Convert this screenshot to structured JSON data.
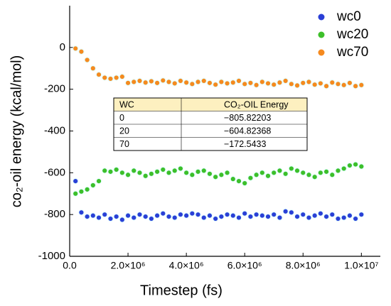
{
  "chart_data": {
    "type": "scatter",
    "xlabel": "Timestep (fs)",
    "ylabel": "co₂-oil energy (kcal/mol)",
    "xlim": [
      0,
      10650000
    ],
    "ylim": [
      -1000,
      200
    ],
    "xticks": [
      {
        "value": 0,
        "label": "0.0"
      },
      {
        "value": 2000000,
        "label": "2.0×10⁶"
      },
      {
        "value": 4000000,
        "label": "4.0×10⁶"
      },
      {
        "value": 6000000,
        "label": "6.0×10⁶"
      },
      {
        "value": 8000000,
        "label": "8.0×10⁶"
      },
      {
        "value": 10000000,
        "label": "1.0×10⁷"
      }
    ],
    "yticks": [
      -1000,
      -800,
      -600,
      -400,
      -200,
      0
    ],
    "legend": "upper right",
    "x": [
      200000,
      400000,
      600000,
      800000,
      1000000,
      1200000,
      1400000,
      1600000,
      1800000,
      2000000,
      2200000,
      2400000,
      2600000,
      2800000,
      3000000,
      3200000,
      3400000,
      3600000,
      3800000,
      4000000,
      4200000,
      4400000,
      4600000,
      4800000,
      5000000,
      5200000,
      5400000,
      5600000,
      5800000,
      6000000,
      6200000,
      6400000,
      6600000,
      6800000,
      7000000,
      7200000,
      7400000,
      7600000,
      7800000,
      8000000,
      8200000,
      8400000,
      8600000,
      8800000,
      9000000,
      9200000,
      9400000,
      9600000,
      9800000,
      10000000
    ],
    "series": [
      {
        "name": "wc0",
        "color": "#2a3fd6",
        "values": [
          -640,
          -790,
          -810,
          -805,
          -815,
          -800,
          -820,
          -810,
          -825,
          -805,
          -815,
          -800,
          -810,
          -820,
          -805,
          -795,
          -810,
          -815,
          -800,
          -805,
          -795,
          -800,
          -815,
          -805,
          -820,
          -810,
          -800,
          -805,
          -815,
          -795,
          -810,
          -800,
          -805,
          -810,
          -800,
          -815,
          -785,
          -790,
          -810,
          -800,
          -815,
          -805,
          -795,
          -810,
          -800,
          -820,
          -815,
          -805,
          -820,
          -800
        ]
      },
      {
        "name": "wc20",
        "color": "#3dbf2a",
        "values": [
          -700,
          -690,
          -680,
          -660,
          -640,
          -590,
          -595,
          -585,
          -600,
          -610,
          -590,
          -600,
          -615,
          -605,
          -595,
          -585,
          -600,
          -590,
          -580,
          -600,
          -610,
          -595,
          -590,
          -605,
          -620,
          -610,
          -600,
          -630,
          -640,
          -650,
          -625,
          -610,
          -600,
          -615,
          -600,
          -590,
          -605,
          -580,
          -590,
          -600,
          -610,
          -620,
          -600,
          -595,
          -610,
          -590,
          -580,
          -565,
          -560,
          -570
        ]
      },
      {
        "name": "wc70",
        "color": "#f58a1f",
        "values": [
          -5,
          -20,
          -60,
          -100,
          -130,
          -145,
          -150,
          -145,
          -140,
          -170,
          -165,
          -160,
          -168,
          -162,
          -170,
          -158,
          -165,
          -172,
          -160,
          -168,
          -175,
          -165,
          -160,
          -170,
          -178,
          -165,
          -172,
          -168,
          -160,
          -175,
          -170,
          -180,
          -165,
          -172,
          -178,
          -168,
          -160,
          -175,
          -182,
          -170,
          -165,
          -178,
          -172,
          -185,
          -168,
          -175,
          -180,
          -170,
          -185,
          -180
        ]
      }
    ],
    "table": {
      "header": [
        "WC",
        "CO₂-OIL Energy"
      ],
      "rows": [
        [
          "0",
          "−805.82203"
        ],
        [
          "20",
          "−604.82368"
        ],
        [
          "70",
          "−172.5433"
        ]
      ]
    }
  }
}
